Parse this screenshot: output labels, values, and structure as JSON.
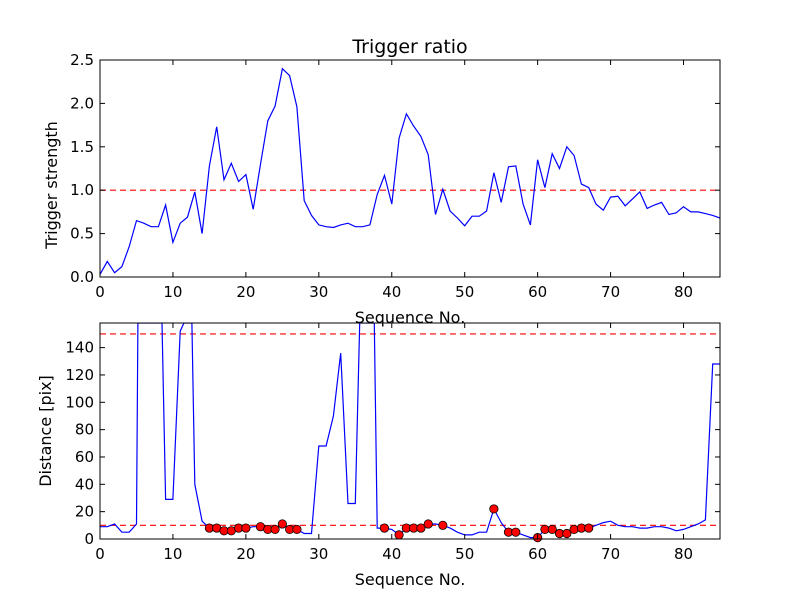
{
  "chart_data": [
    {
      "type": "line",
      "title": "Trigger ratio",
      "xlabel": "Sequence No.",
      "ylabel": "Trigger strength",
      "xlim": [
        0,
        85
      ],
      "ylim": [
        0,
        2.5
      ],
      "xticks": [
        0,
        10,
        20,
        30,
        40,
        50,
        60,
        70,
        80
      ],
      "yticks": [
        0.0,
        0.5,
        1.0,
        1.5,
        2.0,
        2.5
      ],
      "ytick_labels": [
        "0.0",
        "0.5",
        "1.0",
        "1.5",
        "2.0",
        "2.5"
      ],
      "hline": 1.0,
      "hline_color": "#ff0000",
      "line_color": "#0000ff",
      "series": [
        {
          "name": "Trigger strength",
          "x": [
            0,
            1,
            2,
            3,
            4,
            5,
            6,
            7,
            8,
            9,
            10,
            11,
            12,
            13,
            14,
            15,
            16,
            17,
            18,
            19,
            20,
            21,
            22,
            23,
            24,
            25,
            26,
            27,
            28,
            29,
            30,
            31,
            32,
            33,
            34,
            35,
            36,
            37,
            38,
            39,
            40,
            41,
            42,
            43,
            44,
            45,
            46,
            47,
            48,
            49,
            50,
            51,
            52,
            53,
            54,
            55,
            56,
            57,
            58,
            59,
            60,
            61,
            62,
            63,
            64,
            65,
            66,
            67,
            68,
            69,
            70,
            71,
            72,
            73,
            74,
            75,
            76,
            77,
            78,
            79,
            80,
            81,
            82,
            83,
            84,
            85
          ],
          "values": [
            0.03,
            0.18,
            0.05,
            0.12,
            0.35,
            0.65,
            0.62,
            0.58,
            0.58,
            0.83,
            0.4,
            0.62,
            0.69,
            0.98,
            0.5,
            1.28,
            1.73,
            1.12,
            1.31,
            1.1,
            1.18,
            0.78,
            1.3,
            1.8,
            1.97,
            2.4,
            2.32,
            1.96,
            0.88,
            0.71,
            0.6,
            0.58,
            0.57,
            0.6,
            0.62,
            0.58,
            0.58,
            0.6,
            0.95,
            1.17,
            0.84,
            1.6,
            1.88,
            1.74,
            1.62,
            1.41,
            0.72,
            1.01,
            0.76,
            0.68,
            0.59,
            0.7,
            0.7,
            0.76,
            1.2,
            0.86,
            1.27,
            1.28,
            0.84,
            0.6,
            1.35,
            1.03,
            1.42,
            1.25,
            1.5,
            1.4,
            1.07,
            1.03,
            0.84,
            0.77,
            0.92,
            0.93,
            0.82,
            0.9,
            0.98,
            0.79,
            0.83,
            0.86,
            0.72,
            0.74,
            0.81,
            0.75,
            0.75,
            0.73,
            0.71,
            0.68
          ]
        }
      ]
    },
    {
      "type": "line",
      "title": "",
      "xlabel": "Sequence No.",
      "ylabel": "Distance [pix]",
      "xlim": [
        0,
        85
      ],
      "ylim": [
        0,
        158
      ],
      "xticks": [
        0,
        10,
        20,
        30,
        40,
        50,
        60,
        70,
        80
      ],
      "yticks": [
        0,
        20,
        40,
        60,
        80,
        100,
        120,
        140
      ],
      "hlines": [
        10,
        150
      ],
      "hline_color": "#ff0000",
      "line_color": "#0000ff",
      "marker_color": "#ff0000",
      "series": [
        {
          "name": "Distance",
          "x": [
            0,
            1,
            2,
            3,
            4,
            5,
            5.2,
            8.5,
            9,
            10,
            11,
            11.5,
            12.6,
            13,
            14,
            15,
            16,
            17,
            18,
            19,
            20,
            21,
            22,
            23,
            24,
            25,
            26,
            27,
            28,
            29,
            30,
            31,
            32,
            33,
            34,
            35,
            35.6,
            37.6,
            38,
            39,
            40,
            41,
            42,
            43,
            44,
            45,
            46,
            47,
            48,
            49,
            50,
            51,
            52,
            53,
            54,
            55,
            56,
            57,
            58,
            59,
            60,
            61,
            62,
            63,
            64,
            65,
            66,
            67,
            68,
            69,
            70,
            71,
            72,
            73,
            74,
            75,
            76,
            77,
            78,
            79,
            80,
            81,
            82,
            83,
            84,
            85
          ],
          "values": [
            9,
            9,
            11,
            5,
            5,
            11,
            158,
            158,
            29,
            29,
            152,
            158,
            158,
            40,
            13,
            8,
            8,
            6,
            6,
            8,
            8,
            9,
            9,
            7,
            7,
            11,
            7,
            7,
            4,
            4,
            68,
            68,
            90,
            136,
            26,
            26,
            158,
            158,
            8,
            8,
            7,
            3,
            8,
            8,
            8,
            11,
            11,
            10,
            8,
            5,
            3,
            3,
            5,
            5,
            22,
            12,
            5,
            5,
            3,
            1,
            1,
            7,
            7,
            4,
            4,
            7,
            8,
            8,
            10,
            12,
            13,
            10,
            9,
            9,
            8,
            8,
            9,
            9,
            8,
            6,
            7,
            9,
            11,
            14,
            128,
            128
          ]
        },
        {
          "name": "Matched points",
          "marker": "circle",
          "x": [
            15,
            16,
            17,
            18,
            19,
            20,
            22,
            23,
            24,
            25,
            26,
            27,
            39,
            41,
            42,
            43,
            44,
            45,
            47,
            54,
            56,
            57,
            60,
            61,
            62,
            63,
            64,
            65,
            66,
            67
          ],
          "values": [
            8,
            8,
            6,
            6,
            8,
            8,
            9,
            7,
            7,
            11,
            7,
            7,
            8,
            3,
            8,
            8,
            8,
            11,
            10,
            22,
            5,
            5,
            1,
            7,
            7,
            4,
            4,
            7,
            8,
            8
          ]
        }
      ]
    }
  ]
}
